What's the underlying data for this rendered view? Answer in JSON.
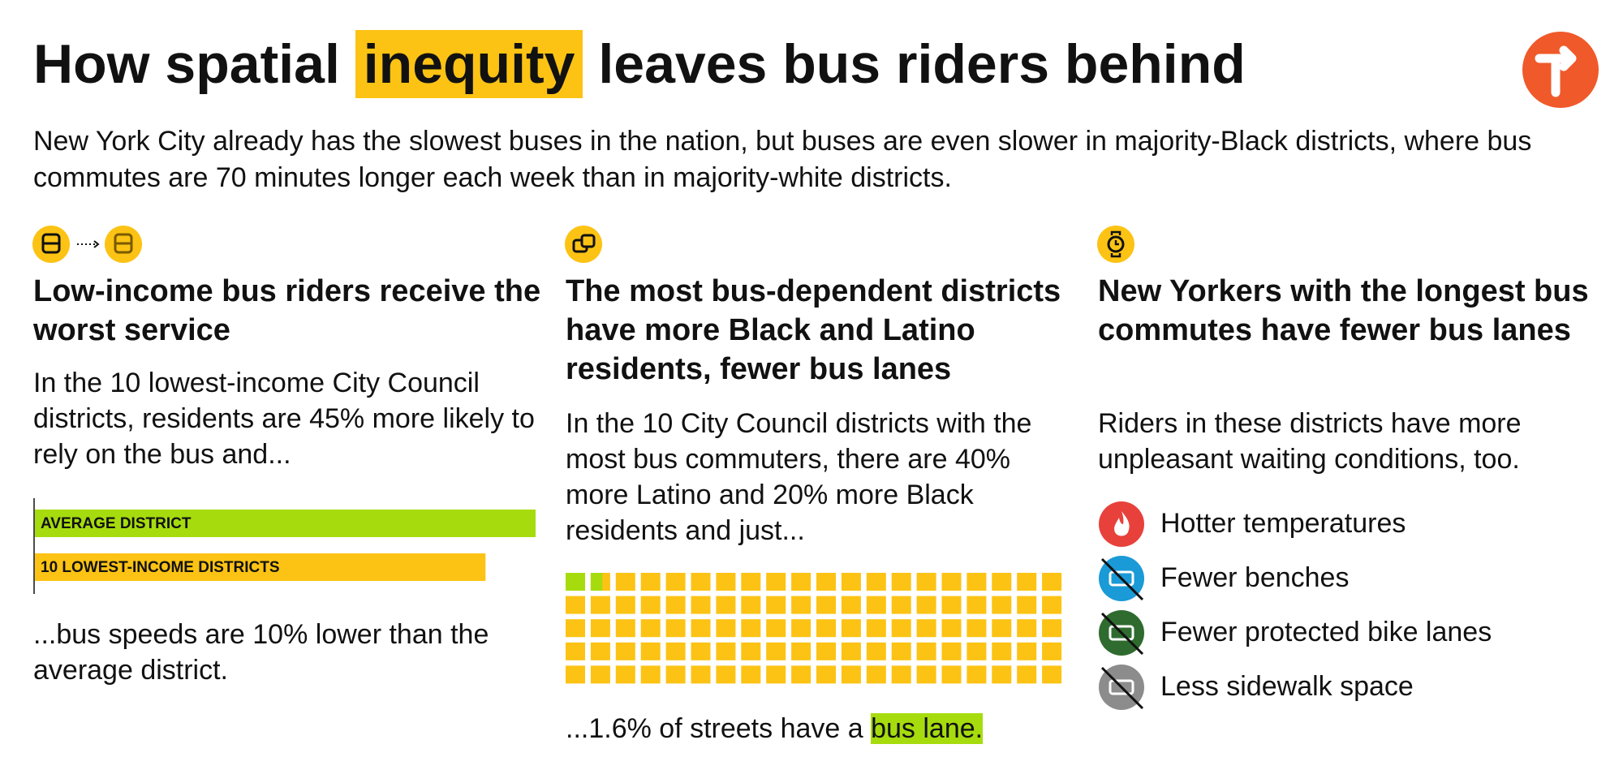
{
  "header": {
    "title_before": "How spatial",
    "title_highlight": "inequity",
    "title_after": "leaves bus riders behind",
    "subtitle": "New York City already has the slowest buses in the nation, but buses are even slower in majority-Black districts, where bus commutes are 70 minutes longer each week than in majority-white districts."
  },
  "columns": [
    {
      "heading": "Low-income bus riders receive the worst service",
      "body": "In the 10 lowest-income City Council districts, residents are 45% more likely to rely on the bus and...",
      "chart": {
        "type": "bar",
        "categories": [
          "AVERAGE DISTRICT",
          "10 LOWEST-INCOME DISTRICTS"
        ],
        "values": [
          100,
          90
        ],
        "colors": [
          "#a6dc0e",
          "#fcc314"
        ]
      },
      "footer": "...bus speeds are 10% lower than the average district."
    },
    {
      "heading": "The most bus-dependent districts have more Black and Latino residents, fewer bus lanes",
      "body": "In the 10 City Council districts with the most bus commuters, there are 40% more Latino and 20% more Black residents and just...",
      "chart": {
        "type": "waffle",
        "value": 1.6,
        "total": 100,
        "color": "#a6dc0e",
        "rest_color": "#fcc314"
      },
      "footer_before": "...1.6% of streets have a",
      "footer_highlight": "bus lane."
    },
    {
      "heading": "New Yorkers with the longest bus commutes have fewer bus lanes",
      "body": "Riders in these districts have more unpleasant waiting conditions, too.",
      "items": [
        "Hotter temperatures",
        "Fewer benches",
        "Fewer protected bike lanes",
        "Less sidewalk space"
      ]
    }
  ]
}
